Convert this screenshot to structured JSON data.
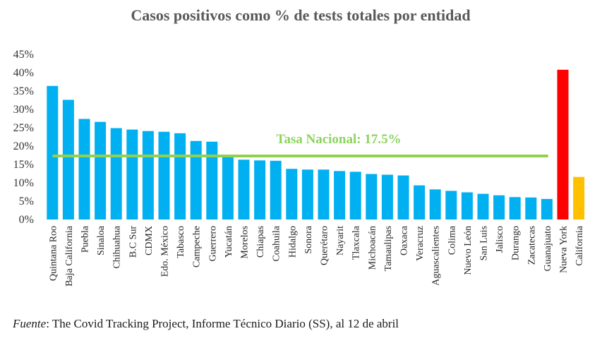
{
  "chart_data": {
    "type": "bar",
    "title": "Casos positivos como % de tests totales por entidad",
    "ylim": [
      0,
      45
    ],
    "yticks": [
      "0%",
      "5%",
      "10%",
      "15%",
      "20%",
      "25%",
      "30%",
      "35%",
      "40%",
      "45%"
    ],
    "grid": false,
    "categories": [
      "Quintana Roo",
      "Baja California",
      "Puebla",
      "Sinaloa",
      "Chihuahua",
      "B.C Sur",
      "CDMX",
      "Edo. México",
      "Tabasco",
      "Campeche",
      "Guerrero",
      "Yucatán",
      "Morelos",
      "Chiapas",
      "Coahuila",
      "Hidalgo",
      "Sonora",
      "Querétaro",
      "Nayarit",
      "Tlaxcala",
      "Michoacán",
      "Tamaulipas",
      "Oaxaca",
      "Veracruz",
      "Aguascalientes",
      "Colima",
      "Nuevo León",
      "San Luis",
      "Jalisco",
      "Durango",
      "Zacatecas",
      "Guanajuato",
      "Nueva York",
      "California"
    ],
    "values": [
      36.4,
      32.6,
      27.4,
      26.6,
      24.9,
      24.5,
      24.1,
      23.9,
      23.5,
      21.4,
      21.2,
      17.5,
      16.3,
      16.1,
      16.0,
      13.8,
      13.6,
      13.6,
      13.2,
      13.0,
      12.4,
      12.2,
      12.0,
      9.3,
      8.2,
      7.8,
      7.4,
      7.0,
      6.6,
      6.1,
      6.0,
      5.6,
      40.8,
      11.6
    ],
    "colors": [
      "#00b0f0",
      "#00b0f0",
      "#00b0f0",
      "#00b0f0",
      "#00b0f0",
      "#00b0f0",
      "#00b0f0",
      "#00b0f0",
      "#00b0f0",
      "#00b0f0",
      "#00b0f0",
      "#00b0f0",
      "#00b0f0",
      "#00b0f0",
      "#00b0f0",
      "#00b0f0",
      "#00b0f0",
      "#00b0f0",
      "#00b0f0",
      "#00b0f0",
      "#00b0f0",
      "#00b0f0",
      "#00b0f0",
      "#00b0f0",
      "#00b0f0",
      "#00b0f0",
      "#00b0f0",
      "#00b0f0",
      "#00b0f0",
      "#00b0f0",
      "#00b0f0",
      "#00b0f0",
      "#ff0000",
      "#ffc000"
    ],
    "reference_line": {
      "label": "Tasa Nacional: 17.5%",
      "value": 17.5,
      "color": "#92d050"
    }
  },
  "source": {
    "label": "Fuente",
    "text": ": The Covid Tracking Project, Informe Técnico Diario (SS), al 12 de abril"
  }
}
